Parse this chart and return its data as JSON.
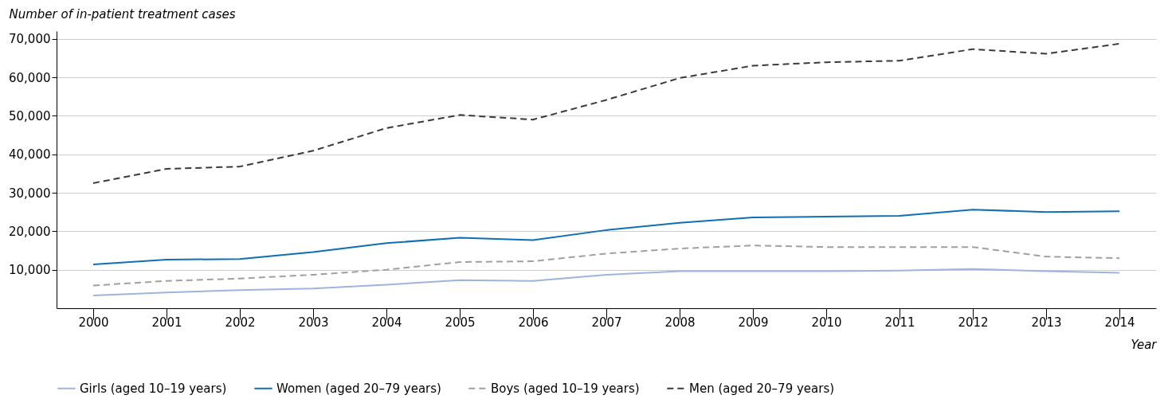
{
  "chart_data": {
    "type": "line",
    "xlabel": "Year",
    "ylabel": "Number of in-patient treatment cases",
    "categories": [
      "2000",
      "2001",
      "2002",
      "2003",
      "2004",
      "2005",
      "2006",
      "2007",
      "2008",
      "2009",
      "2010",
      "2011",
      "2012",
      "2013",
      "2014"
    ],
    "series": [
      {
        "name": "Girls (aged 10–19 years)",
        "color": "#9db4dc",
        "line_style": "solid",
        "values": [
          3300,
          4100,
          4700,
          5100,
          6100,
          7300,
          7100,
          8700,
          9600,
          9600,
          9600,
          9800,
          10200,
          9600,
          9200
        ]
      },
      {
        "name": "Women (aged 20–79 years)",
        "color": "#0f6fb4",
        "line_style": "solid",
        "values": [
          11400,
          12600,
          12800,
          14600,
          16900,
          18300,
          17700,
          20300,
          22200,
          23600,
          23800,
          24000,
          25600,
          25000,
          25200
        ]
      },
      {
        "name": "Boys (aged 10–19 years)",
        "color": "#a0a0a0",
        "line_style": "dashed",
        "values": [
          5900,
          7100,
          7700,
          8700,
          10000,
          12000,
          12200,
          14200,
          15500,
          16300,
          15900,
          15900,
          15900,
          13400,
          13000
        ]
      },
      {
        "name": "Men (aged 20–79 years)",
        "color": "#3a3a3a",
        "line_style": "dashed",
        "values": [
          32500,
          36200,
          36800,
          40900,
          46800,
          50200,
          49000,
          54100,
          59800,
          63000,
          63900,
          64300,
          67300,
          66100,
          68700
        ]
      }
    ],
    "ylim": [
      0,
      72000
    ],
    "yticks": [
      {
        "value": 10000,
        "label": "10,000"
      },
      {
        "value": 20000,
        "label": "20,000"
      },
      {
        "value": 30000,
        "label": "30,000"
      },
      {
        "value": 40000,
        "label": "40,000"
      },
      {
        "value": 50000,
        "label": "50,000"
      },
      {
        "value": 60000,
        "label": "60,000"
      },
      {
        "value": 70000,
        "label": "70,000"
      }
    ],
    "grid": "y",
    "legend": "bottom",
    "marker": "none"
  }
}
